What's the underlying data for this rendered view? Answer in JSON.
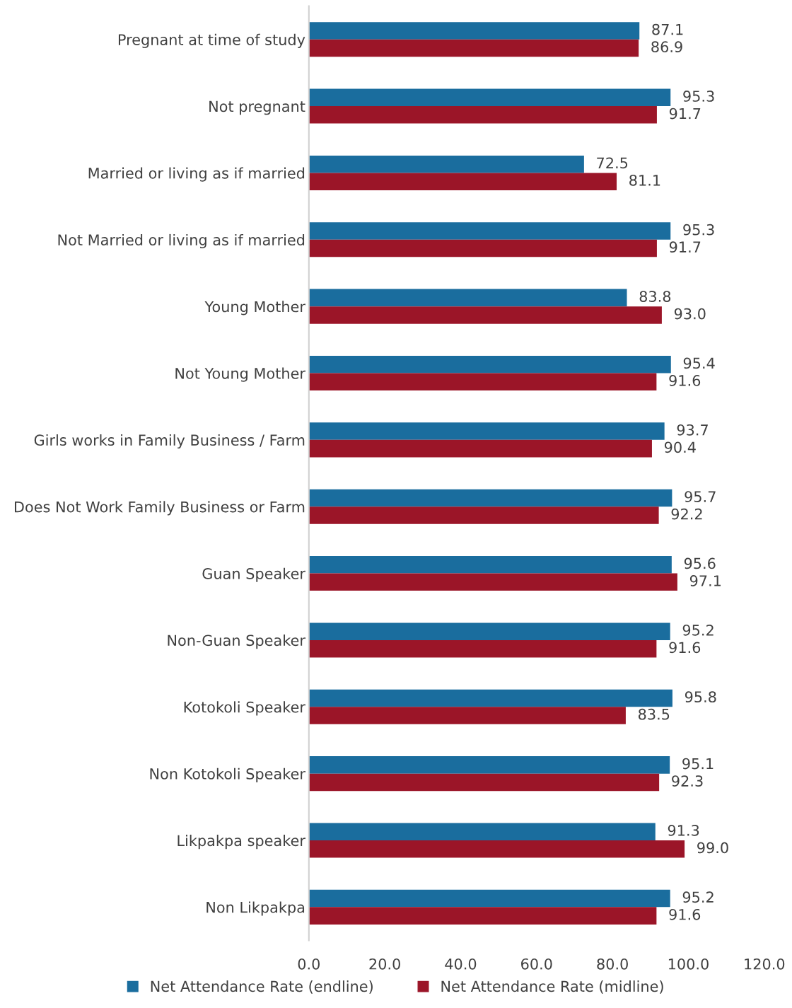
{
  "chart_data": {
    "type": "bar",
    "orientation": "horizontal",
    "categories": [
      "Pregnant at time of study",
      "Not pregnant",
      "Married or living as if married",
      "Not Married or living as if married",
      "Young Mother",
      "Not Young Mother",
      "Girls works in Family Business / Farm",
      "Does Not Work Family Business or Farm",
      "Guan Speaker",
      "Non-Guan Speaker",
      "Kotokoli Speaker",
      "Non Kotokoli Speaker",
      "Likpakpa speaker",
      "Non Likpakpa"
    ],
    "series": [
      {
        "name": "Net Attendance Rate (endline)",
        "color": "#1a6d9e",
        "values": [
          87.1,
          95.3,
          72.5,
          95.3,
          83.8,
          95.4,
          93.7,
          95.7,
          95.6,
          95.2,
          95.8,
          95.1,
          91.3,
          95.2
        ],
        "value_labels": [
          "87.1",
          "95.3",
          "72.5",
          "95.3",
          "83.8",
          "95.4",
          "93.7",
          "95.7",
          "95.6",
          "95.2",
          "95.8",
          "95.1",
          "91.3",
          "95.2"
        ]
      },
      {
        "name": "Net Attendance Rate (midline)",
        "color": "#9b1528",
        "values": [
          86.9,
          91.7,
          81.1,
          91.7,
          93.0,
          91.6,
          90.4,
          92.2,
          97.1,
          91.6,
          83.5,
          92.3,
          99.0,
          91.6
        ],
        "value_labels": [
          "86.9",
          "91.7",
          "81.1",
          "91.7",
          "93.0",
          "91.6",
          "90.4",
          "92.2",
          "97.1",
          "91.6",
          "83.5",
          "92.3",
          "99.0",
          "91.6"
        ]
      }
    ],
    "xlim": [
      0,
      120
    ],
    "xticks": [
      {
        "value": 0,
        "label": "0.0"
      },
      {
        "value": 20,
        "label": "20.0"
      },
      {
        "value": 40,
        "label": "40.0"
      },
      {
        "value": 60,
        "label": "60.0"
      },
      {
        "value": 80,
        "label": "80.0"
      },
      {
        "value": 100,
        "label": "100.0"
      },
      {
        "value": 120,
        "label": "120.0"
      }
    ],
    "grid": false,
    "legend": "bottom"
  }
}
